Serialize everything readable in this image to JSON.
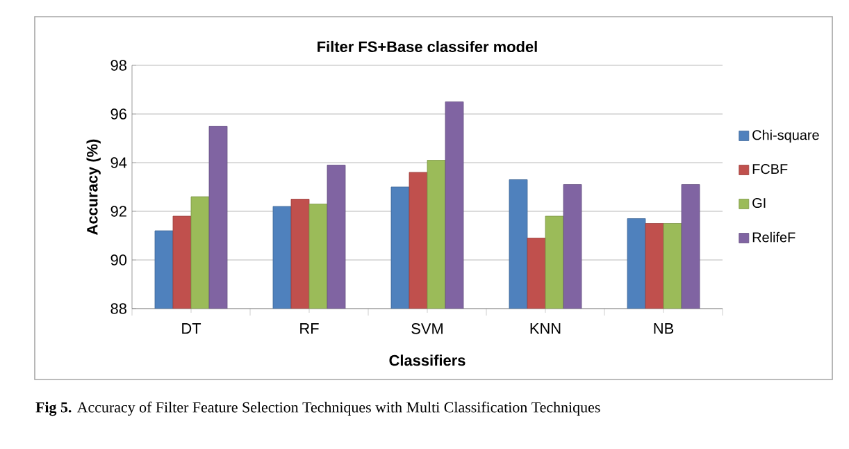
{
  "chart_data": {
    "type": "bar",
    "title": "Filter FS+Base classifer model",
    "xlabel": "Classifiers",
    "ylabel": "Accuracy (%)",
    "categories": [
      "DT",
      "RF",
      "SVM",
      "KNN",
      "NB"
    ],
    "series": [
      {
        "name": "Chi-square",
        "color": "#4f81bd",
        "values": [
          91.2,
          92.2,
          93.0,
          93.3,
          91.7
        ]
      },
      {
        "name": "FCBF",
        "color": "#c0504d",
        "values": [
          91.8,
          92.5,
          93.6,
          90.9,
          91.5
        ]
      },
      {
        "name": "GI",
        "color": "#9bbb59",
        "values": [
          92.6,
          92.3,
          94.1,
          91.8,
          91.5
        ]
      },
      {
        "name": "RelifeF",
        "color": "#8064a2",
        "values": [
          95.5,
          93.9,
          96.5,
          93.1,
          93.1
        ]
      }
    ],
    "ylim": [
      88,
      98
    ],
    "yticks": [
      88,
      90,
      92,
      94,
      96,
      98
    ],
    "grid": "y",
    "legend": "right",
    "annotations": [
      "**Fig 5.** Accuracy of Filter Feature Selection Techniques with Multi Classification Techniques"
    ]
  }
}
